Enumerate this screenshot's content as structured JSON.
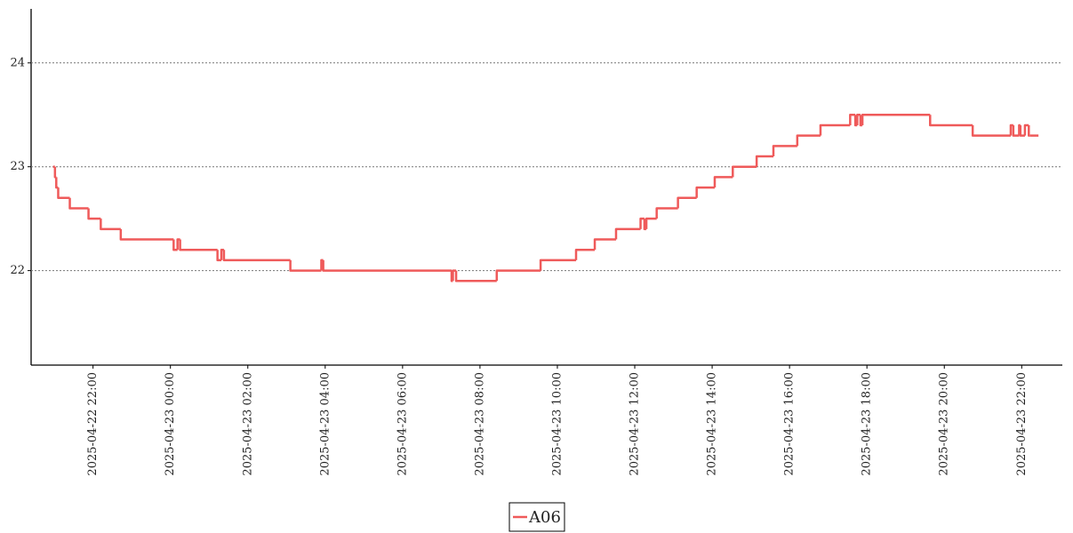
{
  "chart_data": {
    "type": "line",
    "drawstyle": "steps-post",
    "x": [
      "2025-04-22 20:58",
      "2025-04-22 21:01",
      "2025-04-22 21:03",
      "2025-04-22 21:06",
      "2025-04-22 21:24",
      "2025-04-22 21:53",
      "2025-04-22 22:12",
      "2025-04-22 22:43",
      "2025-04-23 00:05",
      "2025-04-23 00:11",
      "2025-04-23 00:15",
      "2025-04-23 01:13",
      "2025-04-23 01:19",
      "2025-04-23 01:23",
      "2025-04-23 03:06",
      "2025-04-23 03:54",
      "2025-04-23 03:57",
      "2025-04-23 07:16",
      "2025-04-23 07:18",
      "2025-04-23 07:23",
      "2025-04-23 08:26",
      "2025-04-23 09:34",
      "2025-04-23 10:29",
      "2025-04-23 10:58",
      "2025-04-23 11:31",
      "2025-04-23 12:09",
      "2025-04-23 12:15",
      "2025-04-23 12:18",
      "2025-04-23 12:34",
      "2025-04-23 13:07",
      "2025-04-23 13:36",
      "2025-04-23 14:04",
      "2025-04-23 14:32",
      "2025-04-23 15:09",
      "2025-04-23 15:35",
      "2025-04-23 16:12",
      "2025-04-23 16:48",
      "2025-04-23 17:34",
      "2025-04-23 17:42",
      "2025-04-23 17:45",
      "2025-04-23 17:50",
      "2025-04-23 17:53",
      "2025-04-23 19:38",
      "2025-04-23 20:44",
      "2025-04-23 21:43",
      "2025-04-23 21:47",
      "2025-04-23 21:56",
      "2025-04-23 21:58",
      "2025-04-23 22:05",
      "2025-04-23 22:11",
      "2025-04-23 22:13",
      "2025-04-23 22:26"
    ],
    "series": [
      {
        "name": "A06",
        "color": "#ef5a5a",
        "values": [
          23.0,
          22.9,
          22.8,
          22.7,
          22.6,
          22.5,
          22.4,
          22.3,
          22.2,
          22.3,
          22.2,
          22.1,
          22.2,
          22.1,
          22.0,
          22.1,
          22.0,
          21.9,
          22.0,
          21.9,
          22.0,
          22.1,
          22.2,
          22.3,
          22.4,
          22.5,
          22.4,
          22.5,
          22.6,
          22.7,
          22.8,
          22.9,
          23.0,
          23.1,
          23.2,
          23.3,
          23.4,
          23.5,
          23.4,
          23.5,
          23.4,
          23.5,
          23.4,
          23.3,
          23.4,
          23.3,
          23.4,
          23.3,
          23.4,
          23.3,
          23.3,
          23.3
        ]
      }
    ],
    "xlim": [
      "2025-04-22 20:24",
      "2025-04-23 23:03"
    ],
    "xticks": [
      "2025-04-22 22:00",
      "2025-04-23 00:00",
      "2025-04-23 02:00",
      "2025-04-23 04:00",
      "2025-04-23 06:00",
      "2025-04-23 08:00",
      "2025-04-23 10:00",
      "2025-04-23 12:00",
      "2025-04-23 14:00",
      "2025-04-23 16:00",
      "2025-04-23 18:00",
      "2025-04-23 20:00",
      "2025-04-23 22:00"
    ],
    "ylim": [
      21.09,
      24.52
    ],
    "yticks": [
      22,
      23,
      24
    ],
    "grid": true,
    "legend": "bottom"
  }
}
